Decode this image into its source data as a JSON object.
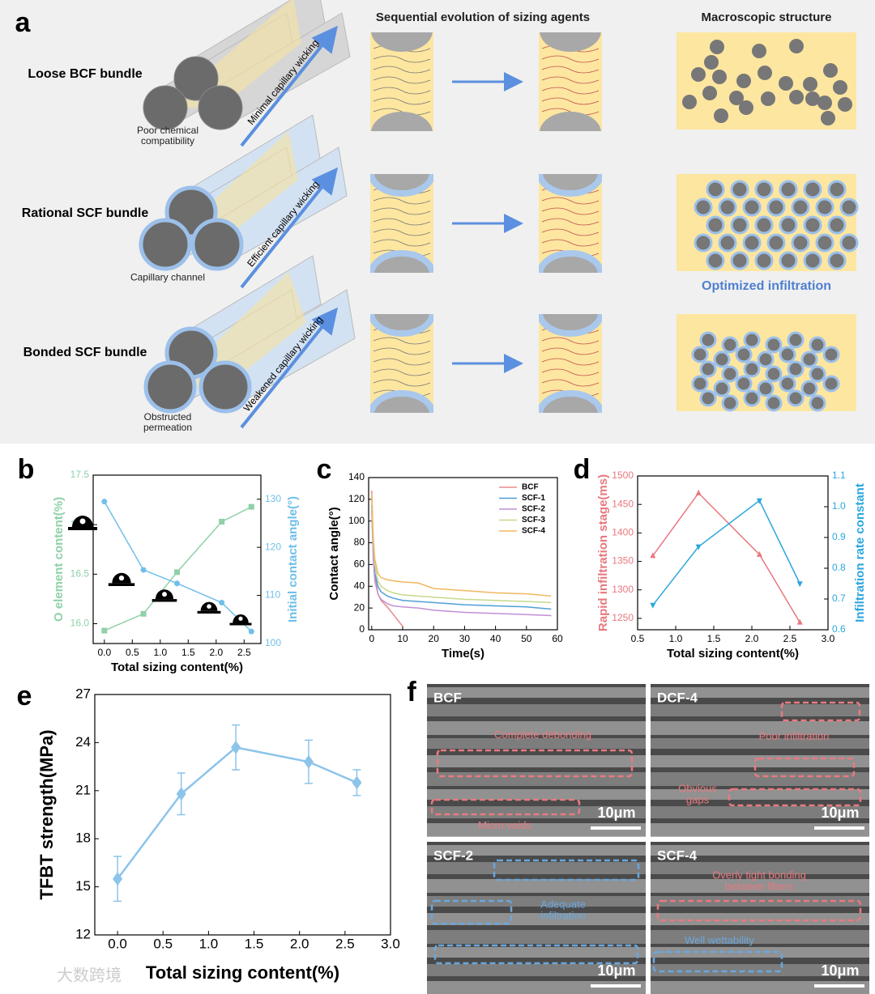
{
  "panel_labels": [
    "a",
    "b",
    "c",
    "d",
    "e",
    "f"
  ],
  "panel_a": {
    "column_titles": [
      "Sequential evolution of sizing agents",
      "Macroscopic structure"
    ],
    "rows": [
      {
        "title": "Loose BCF bundle",
        "wicking": "Minimal capillary wicking",
        "note": "Poor chemical compatibility"
      },
      {
        "title": "Rational SCF bundle",
        "wicking": "Efficient capillary wicking",
        "note": "Capillary channel"
      },
      {
        "title": "Bonded SCF bundle",
        "wicking": "Weakened capillary wicking",
        "note": "Obstructed permeation"
      }
    ],
    "optimized": "Optimized infiltration"
  },
  "chart_data": [
    {
      "type": "line",
      "xlabel": "Total sizing content(%)",
      "ylabel": "O element content(%)",
      "y2label": "Initial contact angle(°)",
      "x": [
        0,
        0.7,
        1.3,
        2.1,
        2.63
      ],
      "series": [
        {
          "name": "O element content",
          "color": "#8fd1a8",
          "marker": "square",
          "values": [
            15.93,
            16.1,
            16.52,
            17.03,
            17.18
          ]
        },
        {
          "name": "Initial contact angle",
          "color": "#6fbfe8",
          "marker": "circle",
          "axis": "y2",
          "values": [
            129.5,
            115.3,
            112.5,
            108.5,
            102.5
          ]
        }
      ],
      "xlim": [
        -0.2,
        2.8
      ],
      "xticks": [
        {
          "value": 0,
          "label": "0.0"
        },
        0.5,
        {
          "value": 1,
          "label": "1.0"
        },
        1.5,
        {
          "value": 2,
          "label": "2.0"
        },
        2.5
      ],
      "ylim": [
        15.8,
        17.5
      ],
      "yticks": [
        {
          "value": 16,
          "label": "16.0"
        },
        16.5,
        {
          "value": 17,
          "label": "17.0"
        },
        17.5
      ],
      "y2lim": [
        100,
        135
      ],
      "y2ticks": [
        100,
        110,
        120,
        130
      ]
    },
    {
      "type": "line",
      "xlabel": "Time(s)",
      "ylabel": "Contact angle(°)",
      "legend": "upper right",
      "x": [
        0,
        0.5,
        1,
        2,
        3,
        5,
        7,
        10,
        15,
        20,
        30,
        40,
        50,
        58
      ],
      "series": [
        {
          "name": "BCF",
          "color": "#e88a8a",
          "values": [
            128,
            75,
            52,
            33,
            27,
            21,
            14,
            3,
            null,
            null,
            null,
            null,
            null,
            null
          ]
        },
        {
          "name": "SCF-1",
          "color": "#4f9fd6",
          "values": [
            115,
            70,
            52,
            40,
            35,
            31,
            29,
            27,
            26,
            25,
            23,
            22,
            21,
            19
          ]
        },
        {
          "name": "SCF-2",
          "color": "#c38fd6",
          "values": [
            110,
            65,
            45,
            33,
            28,
            24,
            22,
            21,
            20,
            18,
            16,
            15,
            14,
            13
          ]
        },
        {
          "name": "SCF-3",
          "color": "#c5d98a",
          "values": [
            120,
            80,
            60,
            45,
            40,
            36,
            34,
            32,
            31,
            30,
            28,
            27,
            26,
            25
          ]
        },
        {
          "name": "SCF-4",
          "color": "#f0b860",
          "values": [
            125,
            85,
            65,
            52,
            48,
            46,
            45,
            44,
            43,
            38,
            36,
            34,
            33,
            31
          ]
        }
      ],
      "xlim": [
        -1,
        60
      ],
      "xticks": [
        0,
        10,
        20,
        30,
        40,
        50,
        60
      ],
      "ylim": [
        0,
        140
      ],
      "yticks": [
        0,
        20,
        40,
        60,
        80,
        100,
        120,
        140
      ]
    },
    {
      "type": "line",
      "xlabel": "Total sizing content(%)",
      "ylabel": "Rapid infiltration stage(ms)",
      "y2label": "Infiltration rate constant",
      "x": [
        0.7,
        1.3,
        2.1,
        2.63
      ],
      "series": [
        {
          "name": "Rapid infiltration stage",
          "color": "#e8787f",
          "marker": "triangle",
          "values": [
            1360,
            1470,
            1362,
            1243
          ]
        },
        {
          "name": "Infiltration rate constant",
          "color": "#2aa7de",
          "marker": "triangle-down",
          "axis": "y2",
          "values": [
            0.68,
            0.87,
            1.02,
            0.75
          ]
        }
      ],
      "xlim": [
        0.5,
        3.0
      ],
      "xticks": [
        0.5,
        {
          "value": 1,
          "label": "1.0"
        },
        1.5,
        {
          "value": 2,
          "label": "2.0"
        },
        2.5,
        {
          "value": 3,
          "label": "3.0"
        }
      ],
      "ylim": [
        1230,
        1500
      ],
      "yticks": [
        1250,
        1300,
        1350,
        1400,
        1450,
        1500
      ],
      "y2lim": [
        0.6,
        1.1
      ],
      "y2ticks": [
        0.6,
        0.7,
        0.8,
        0.9,
        {
          "value": 1,
          "label": "1.0"
        },
        1.1
      ]
    },
    {
      "type": "line",
      "xlabel": "Total sizing content(%)",
      "ylabel": "TFBT strength(MPa)",
      "x": [
        0,
        0.7,
        1.3,
        2.1,
        2.63
      ],
      "series": [
        {
          "name": "TFBT strength",
          "color": "#8cc4ea",
          "marker": "diamond",
          "values": [
            15.5,
            20.8,
            23.7,
            22.8,
            21.5
          ],
          "errors": [
            1.4,
            1.3,
            1.4,
            1.35,
            0.8
          ]
        }
      ],
      "xlim": [
        -0.25,
        3.0
      ],
      "xticks": [
        {
          "value": 0,
          "label": "0.0"
        },
        0.5,
        {
          "value": 1,
          "label": "1.0"
        },
        1.5,
        {
          "value": 2,
          "label": "2.0"
        },
        2.5,
        {
          "value": 3,
          "label": "3.0"
        }
      ],
      "ylim": [
        12,
        27
      ],
      "yticks": [
        12,
        15,
        18,
        21,
        24,
        27
      ]
    }
  ],
  "panel_f": {
    "images": [
      {
        "label": "BCF",
        "annotations": [
          "Complete debonding",
          "Micro voids"
        ],
        "scale": "10μm"
      },
      {
        "label": "DCF-4",
        "annotations": [
          "Poor infiltration",
          "Obvious gaps"
        ],
        "scale": "10μm"
      },
      {
        "label": "SCF-2",
        "annotations": [
          "Adequate infiltration"
        ],
        "scale": "10μm"
      },
      {
        "label": "SCF-4",
        "annotations": [
          "Overly tight bonding between fibers",
          "Well wettability"
        ],
        "scale": "10μm"
      }
    ]
  },
  "watermark": "大数跨境"
}
